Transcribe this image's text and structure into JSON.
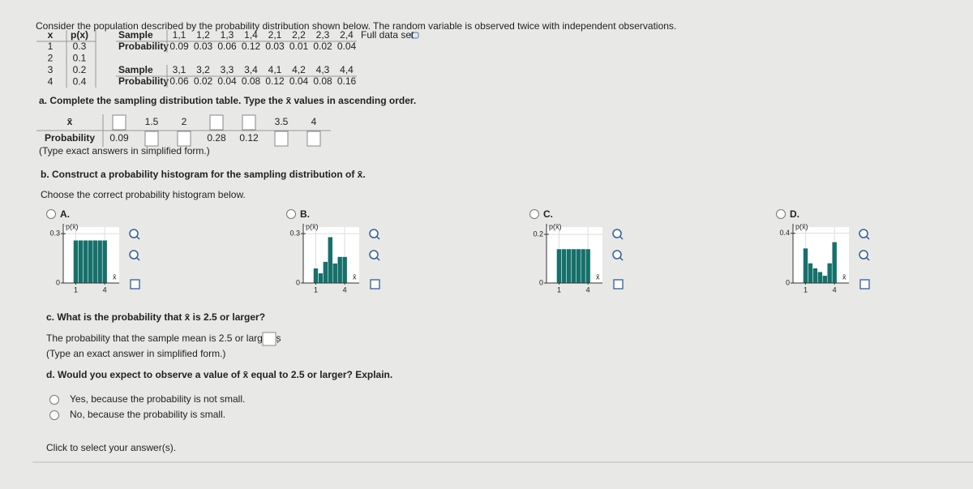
{
  "prompt": "Consider the population described by the probability distribution shown below. The random variable is observed twice with independent observations.",
  "population_table": {
    "headers": [
      "x",
      "p(x)"
    ],
    "rows": [
      [
        1,
        0.3
      ],
      [
        2,
        0.1
      ],
      [
        3,
        0.2
      ],
      [
        4,
        0.4
      ]
    ]
  },
  "full_data_set": "Full data set",
  "sample_tables": [
    {
      "row_labels": [
        "Sample",
        "Probability"
      ],
      "samples": [
        "1,1",
        "1,2",
        "1,3",
        "1,4",
        "2,1",
        "2,2",
        "2,3",
        "2,4"
      ],
      "probabilities": [
        0.09,
        0.03,
        0.06,
        0.12,
        0.03,
        0.01,
        0.02,
        0.04
      ]
    },
    {
      "row_labels": [
        "Sample",
        "Probability"
      ],
      "samples": [
        "3,1",
        "3,2",
        "3,3",
        "3,4",
        "4,1",
        "4,2",
        "4,3",
        "4,4"
      ],
      "probabilities": [
        0.06,
        0.02,
        0.04,
        0.08,
        0.12,
        0.04,
        0.08,
        0.16
      ]
    }
  ],
  "part_a": {
    "question": "a. Complete the sampling distribution table. Type the x̄ values in ascending order.",
    "table": {
      "row_labels": [
        "x̄",
        "Probability"
      ],
      "x_values": [
        null,
        1.5,
        2,
        null,
        null,
        3.5,
        4
      ],
      "probabilities": [
        0.09,
        null,
        null,
        0.28,
        0.12,
        null,
        null
      ]
    },
    "note": "(Type exact answers in simplified form.)"
  },
  "part_b": {
    "question": "b. Construct a probability histogram for the sampling distribution of x̄.",
    "instruction": "Choose the correct probability histogram below.",
    "options": [
      {
        "label": "A.",
        "chart": {
          "type": "histogram",
          "ylabel": "p(x̄)",
          "xlabel": "x̄",
          "color": "#16706b",
          "bins": [
            0.75,
            1.25,
            1.75,
            2.25,
            2.75,
            3.25,
            3.75,
            4.25
          ],
          "values": [
            0.26,
            0.26,
            0.26,
            0.26,
            0.26,
            0.26,
            0.26
          ],
          "xlim": [
            -0.3,
            5.5
          ],
          "ylim": [
            0,
            0.34
          ],
          "xticks": [
            1,
            4
          ],
          "yticks": [
            0,
            0.3
          ],
          "grid": true
        }
      },
      {
        "label": "B.",
        "chart": {
          "type": "histogram",
          "ylabel": "p(x̄)",
          "xlabel": "x̄",
          "color": "#16706b",
          "bins": [
            0.75,
            1.25,
            1.75,
            2.25,
            2.75,
            3.25,
            3.75,
            4.25
          ],
          "values": [
            0.09,
            0.06,
            0.13,
            0.28,
            0.12,
            0.16,
            0.16
          ],
          "xlim": [
            -0.3,
            5.5
          ],
          "ylim": [
            0,
            0.34
          ],
          "xticks": [
            1,
            4
          ],
          "yticks": [
            0,
            0.3
          ],
          "grid": true
        }
      },
      {
        "label": "C.",
        "chart": {
          "type": "histogram",
          "ylabel": "p(x̄)",
          "xlabel": "x̄",
          "color": "#16706b",
          "bins": [
            0.75,
            1.25,
            1.75,
            2.25,
            2.75,
            3.25,
            3.75,
            4.25
          ],
          "values": [
            0.14,
            0.14,
            0.14,
            0.14,
            0.14,
            0.14,
            0.14
          ],
          "xlim": [
            -0.3,
            5.5
          ],
          "ylim": [
            0,
            0.23
          ],
          "xticks": [
            1,
            4
          ],
          "yticks": [
            0,
            0.2
          ],
          "grid": true
        }
      },
      {
        "label": "D.",
        "chart": {
          "type": "histogram",
          "ylabel": "p(x̄)",
          "xlabel": "x̄",
          "color": "#16706b",
          "bins": [
            0.75,
            1.25,
            1.75,
            2.25,
            2.75,
            3.25,
            3.75,
            4.25
          ],
          "values": [
            0.28,
            0.16,
            0.12,
            0.09,
            0.06,
            0.16,
            0.33
          ],
          "xlim": [
            -0.3,
            5.5
          ],
          "ylim": [
            0,
            0.45
          ],
          "xticks": [
            1,
            4
          ],
          "yticks": [
            0,
            0.4
          ],
          "grid": true
        }
      }
    ]
  },
  "part_c": {
    "question": "c. What is the probability that x̄ is 2.5 or larger?",
    "sentence": "The probability that the sample mean is 2.5 or larger is",
    "end": ".",
    "note": "(Type an exact answer in simplified form.)"
  },
  "part_d": {
    "question": "d. Would you expect to observe a value of x̄ equal to 2.5 or larger? Explain.",
    "choices": [
      "Yes, because the probability is not small.",
      "No, because the probability is small."
    ]
  },
  "footer": "Click to select your answer(s)."
}
